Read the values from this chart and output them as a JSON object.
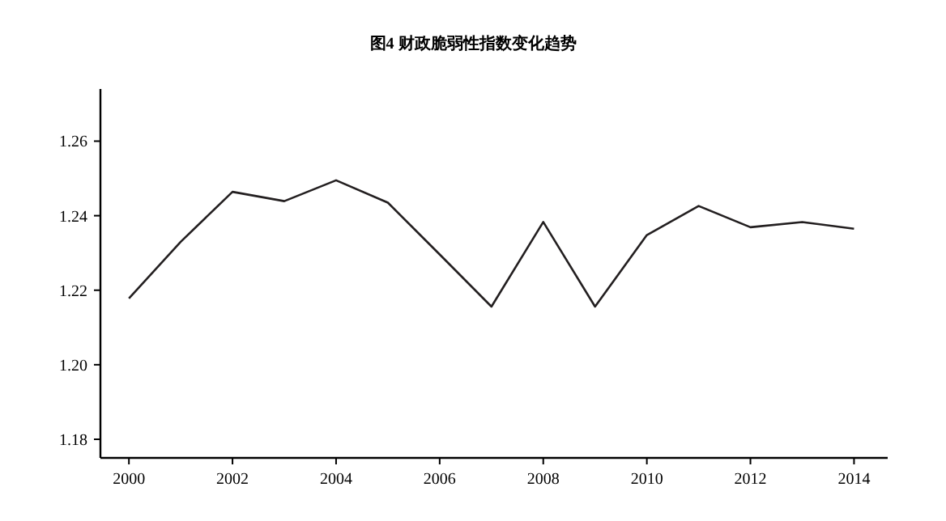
{
  "chart_data": {
    "type": "line",
    "title": "图4 财政脆弱性指数变化趋势",
    "x": [
      2000,
      2001,
      2002,
      2003,
      2004,
      2005,
      2006,
      2007,
      2008,
      2009,
      2010,
      2011,
      2012,
      2013,
      2014
    ],
    "series": [
      {
        "color": "#231f20",
        "values": [
          1.2178,
          1.233,
          1.2464,
          1.2439,
          1.2495,
          1.2435,
          1.2296,
          1.2156,
          1.2383,
          1.2156,
          1.2348,
          1.2426,
          1.2369,
          1.2383,
          1.2365
        ]
      }
    ],
    "xlim": [
      1999.45,
      2014.65
    ],
    "ylim": [
      1.175,
      1.274
    ],
    "xticks": [
      2000,
      2002,
      2004,
      2006,
      2008,
      2010,
      2012,
      2014
    ],
    "yticks": [
      {
        "value": 1.18,
        "label": "1.18"
      },
      {
        "value": 1.2,
        "label": "1.20"
      },
      {
        "value": 1.22,
        "label": "1.22"
      },
      {
        "value": 1.24,
        "label": "1.24"
      },
      {
        "value": 1.26,
        "label": "1.26"
      }
    ],
    "grid": false,
    "marker": "none",
    "line_style": "solid"
  }
}
